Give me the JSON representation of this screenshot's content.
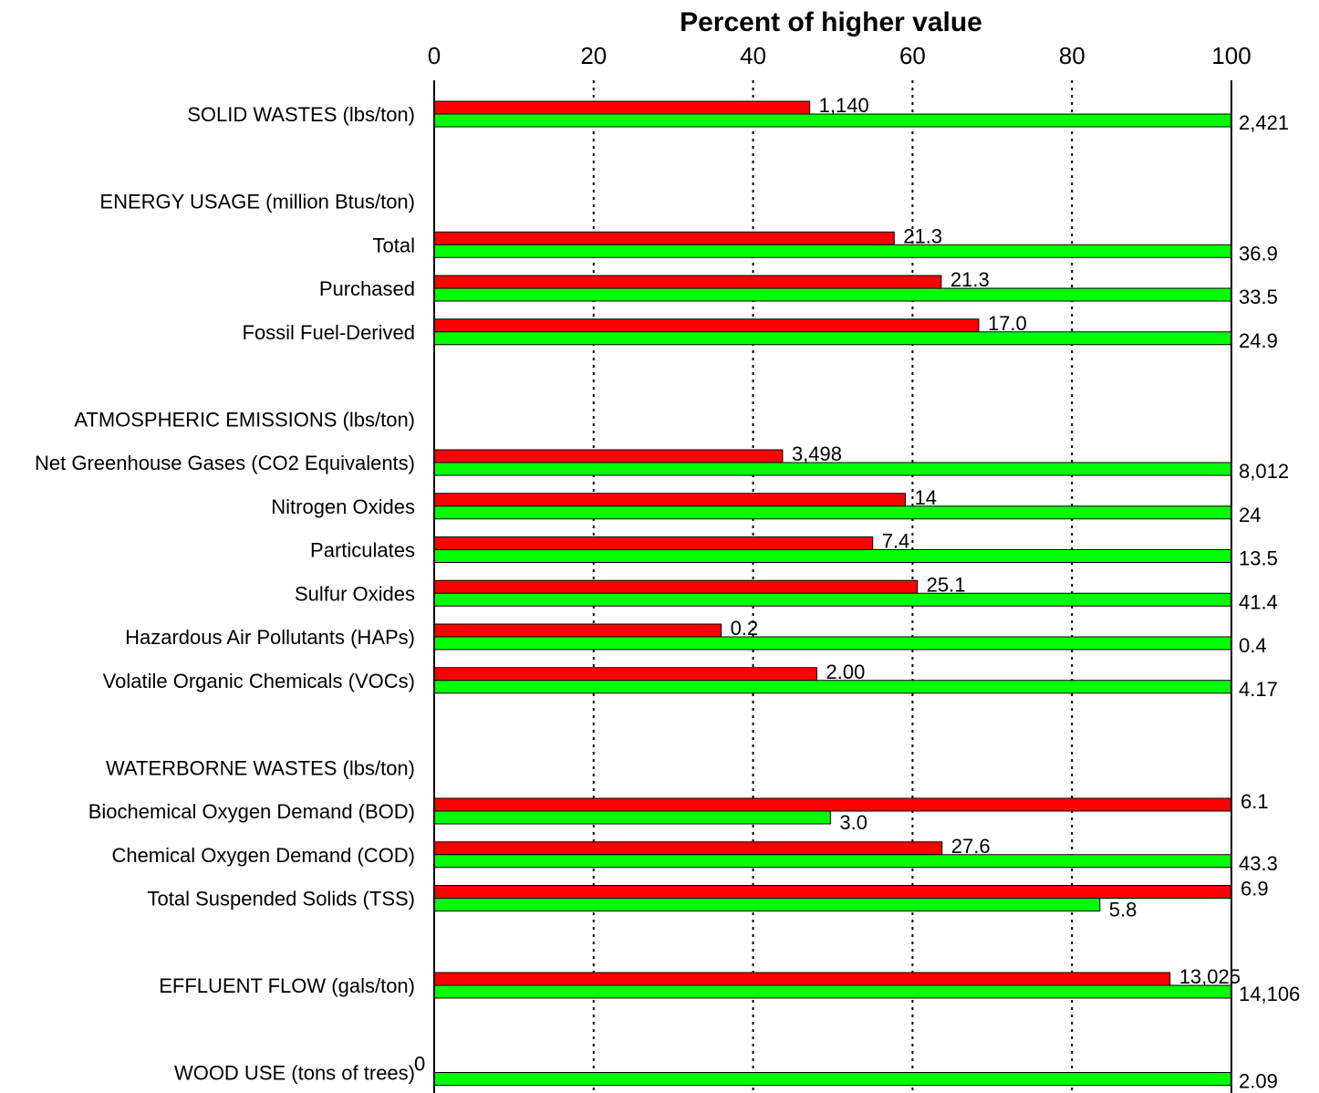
{
  "chart_data": {
    "type": "bar",
    "orientation": "horizontal",
    "title": "Percent of higher value",
    "xlim": [
      0,
      100
    ],
    "x_ticks": [
      "0",
      "20",
      "40",
      "60",
      "80",
      "100"
    ],
    "grid": "vertical dotted",
    "colors": {
      "red": "#ff0000",
      "green": "#00ff00"
    },
    "rows": [
      {
        "label": "SOLID WASTES (lbs/ton)",
        "red": 47.1,
        "green": 100,
        "red_label": "1,140",
        "green_label": "2,421"
      },
      {
        "label": "",
        "header": true
      },
      {
        "label": "ENERGY USAGE (million Btus/ton)",
        "header": true
      },
      {
        "label": "Total",
        "red": 57.7,
        "green": 100,
        "red_label": "21.3",
        "green_label": "36.9"
      },
      {
        "label": "Purchased",
        "red": 63.6,
        "green": 100,
        "red_label": "21.3",
        "green_label": "33.5"
      },
      {
        "label": "Fossil Fuel-Derived",
        "red": 68.3,
        "green": 100,
        "red_label": "17.0",
        "green_label": "24.9"
      },
      {
        "label": "",
        "header": true
      },
      {
        "label": "ATMOSPHERIC EMISSIONS (lbs/ton)",
        "header": true
      },
      {
        "label": "Net Greenhouse Gases (CO2 Equivalents)",
        "red": 43.7,
        "green": 100,
        "red_label": "3,498",
        "green_label": "8,012"
      },
      {
        "label": "Nitrogen Oxides",
        "red": 59.1,
        "green": 100,
        "red_label": "14",
        "green_label": "24"
      },
      {
        "label": "Particulates",
        "red": 55.0,
        "green": 100,
        "red_label": "7.4",
        "green_label": "13.5"
      },
      {
        "label": "Sulfur Oxides",
        "red": 60.6,
        "green": 100,
        "red_label": "25.1",
        "green_label": "41.4"
      },
      {
        "label": "Hazardous Air Pollutants (HAPs)",
        "red": 36.0,
        "green": 100,
        "red_label": "0.2",
        "green_label": "0.4"
      },
      {
        "label": "Volatile Organic Chemicals (VOCs)",
        "red": 48.0,
        "green": 100,
        "red_label": "2.00",
        "green_label": "4.17"
      },
      {
        "label": "",
        "header": true
      },
      {
        "label": "WATERBORNE WASTES (lbs/ton)",
        "header": true
      },
      {
        "label": "Biochemical Oxygen Demand (BOD)",
        "red": 100,
        "green": 49.7,
        "red_label": "6.1",
        "green_label": "3.0"
      },
      {
        "label": "Chemical Oxygen Demand (COD)",
        "red": 63.7,
        "green": 100,
        "red_label": "27.6",
        "green_label": "43.3"
      },
      {
        "label": "Total Suspended Solids (TSS)",
        "red": 100,
        "green": 83.5,
        "red_label": "6.9",
        "green_label": "5.8"
      },
      {
        "label": "",
        "header": true
      },
      {
        "label": "EFFLUENT FLOW (gals/ton)",
        "red": 92.3,
        "green": 100,
        "red_label": "13,025",
        "green_label": "14,106"
      },
      {
        "label": "",
        "header": true
      },
      {
        "label": "WOOD USE (tons of trees)",
        "red": 0,
        "green": 100,
        "red_label": "0",
        "green_label": "2.09"
      }
    ]
  }
}
